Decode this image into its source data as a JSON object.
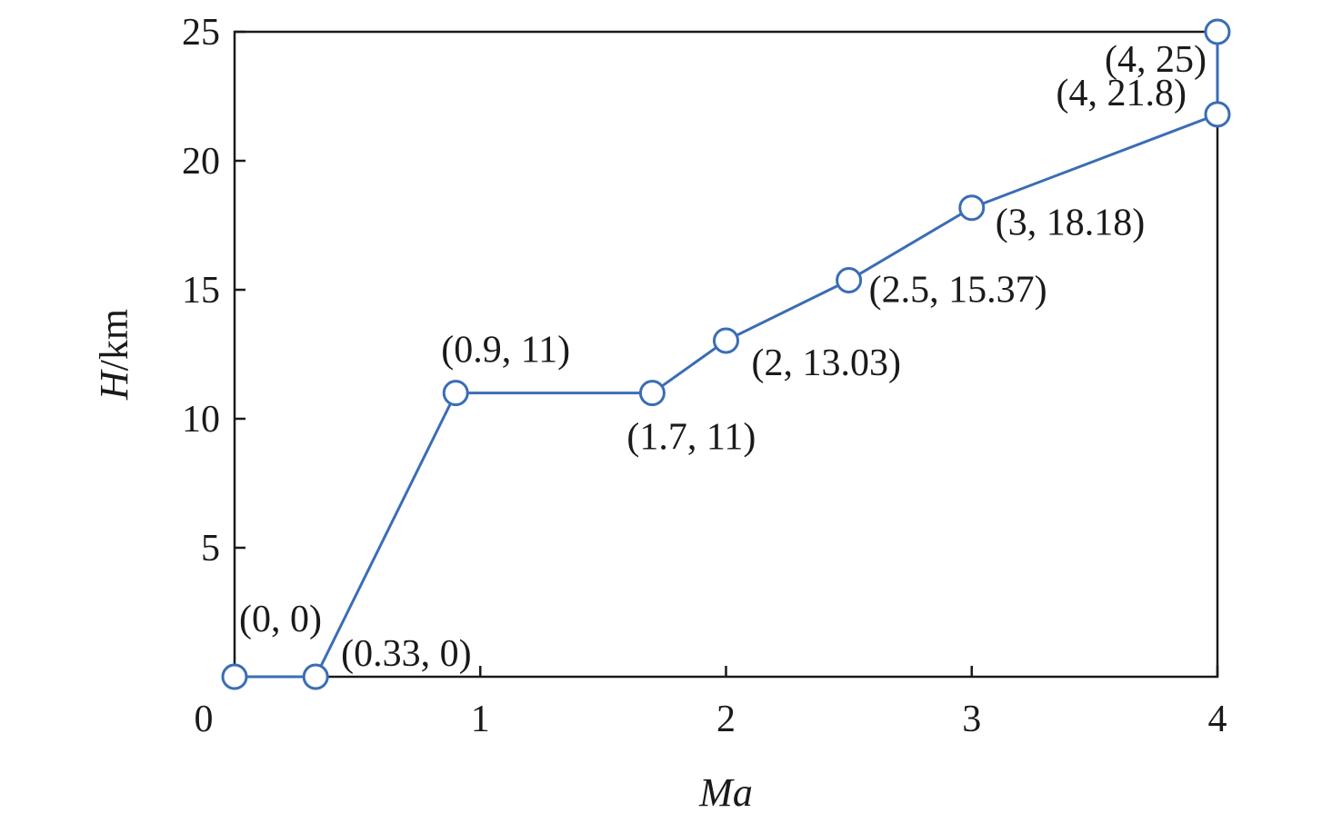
{
  "chart_data": {
    "type": "line",
    "title": "",
    "xlabel": {
      "italic": "Ma",
      "rest": ""
    },
    "ylabel": {
      "italic": "H",
      "rest": "/km"
    },
    "xlim": [
      0,
      4
    ],
    "ylim": [
      0,
      25
    ],
    "xticks": [
      0,
      1,
      2,
      3,
      4
    ],
    "yticks": [
      5,
      10,
      15,
      20,
      25
    ],
    "origin_label": "0",
    "grid": false,
    "legend": "none",
    "series": [
      {
        "color": "#3a6db5",
        "marker": "circle",
        "points": [
          {
            "x": 0,
            "y": 0,
            "label": "(0, 0)"
          },
          {
            "x": 0.33,
            "y": 0,
            "label": "(0.33, 0)"
          },
          {
            "x": 0.9,
            "y": 11,
            "label": "(0.9, 11)"
          },
          {
            "x": 1.7,
            "y": 11,
            "label": "(1.7, 11)"
          },
          {
            "x": 2,
            "y": 13.03,
            "label": "(2, 13.03)"
          },
          {
            "x": 2.5,
            "y": 15.37,
            "label": "(2.5, 15.37)"
          },
          {
            "x": 3,
            "y": 18.18,
            "label": "(3, 18.18)"
          },
          {
            "x": 4,
            "y": 21.8,
            "label": "(4, 21.8)"
          },
          {
            "x": 4,
            "y": 25,
            "label": "(4, 25)"
          }
        ]
      }
    ]
  }
}
